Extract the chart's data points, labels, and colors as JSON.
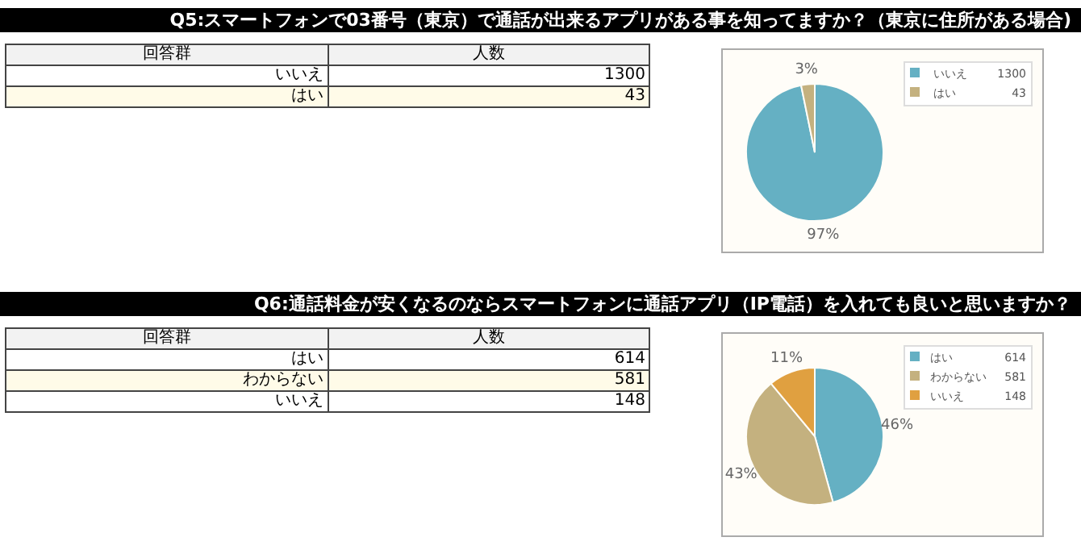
{
  "chart_data": [
    {
      "type": "pie",
      "title": "Q5:スマートフォンで03番号（東京）で通話が出来るアプリがある事を知ってますか？（東京に住所がある場合)",
      "categories": [
        "いいえ",
        "はい"
      ],
      "values": [
        1300,
        43
      ],
      "value_labels": [
        "1300",
        "43"
      ],
      "colors": [
        "#65b0c3",
        "#c4b17f"
      ],
      "data_labels": true,
      "legend": "top right",
      "annotations": [
        "回答群",
        "人数",
        {
          "text": "97%",
          "x": "いいえ"
        },
        {
          "text": "3%",
          "x": "はい"
        }
      ]
    },
    {
      "type": "pie",
      "title": "Q6:通話料金が安くなるのならスマートフォンに通話アプリ（IP電話）を入れても良いと思いますか？",
      "categories": [
        "はい",
        "わからない",
        "いいえ"
      ],
      "values": [
        614,
        581,
        148
      ],
      "value_labels": [
        "614",
        "581",
        "148"
      ],
      "colors": [
        "#65b0c3",
        "#c4b17f",
        "#e0a040"
      ],
      "data_labels": true,
      "legend": "top right",
      "annotations": [
        "回答群",
        "人数",
        {
          "text": "46%",
          "x": "はい"
        },
        {
          "text": "43%",
          "x": "わからない"
        },
        {
          "text": "11%",
          "x": "いいえ"
        }
      ]
    }
  ]
}
